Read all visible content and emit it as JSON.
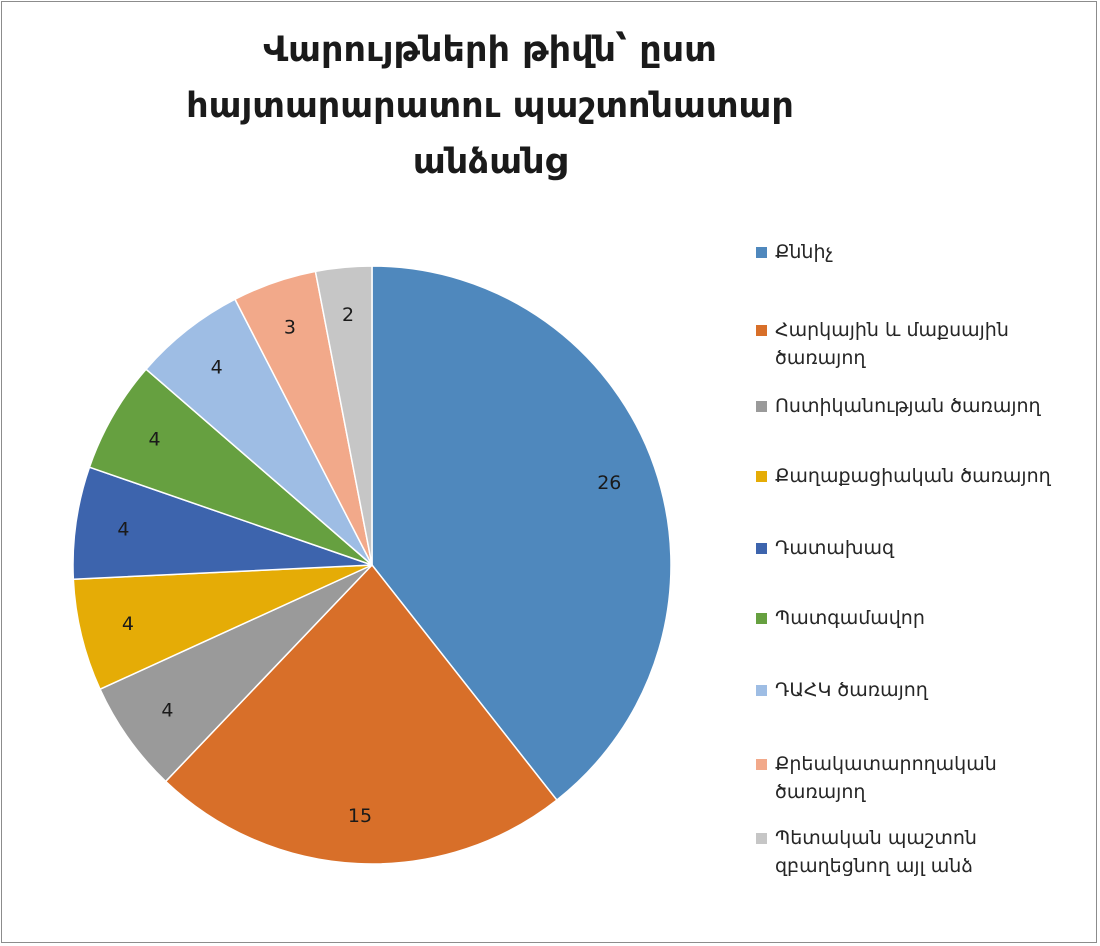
{
  "chart_data": {
    "type": "pie",
    "title": "Վարույթների թիվն՝ ըստ հայտարարատու պաշտոնատար անձանց",
    "title_lines": [
      "Վարույթների թիվն՝ ըստ",
      "հայտարարատու պաշտոնատար",
      "անձանց"
    ],
    "legend_position": "right",
    "slices": [
      {
        "label": "Քննիչ",
        "value": 26,
        "color": "#4f88bd"
      },
      {
        "label": "Հարկային և մաքսային ծառայող",
        "value": 15,
        "color": "#d86f29"
      },
      {
        "label": "Ոստիկանության ծառայող",
        "value": 4,
        "color": "#9a9a9a"
      },
      {
        "label": "Քաղաքացիական ծառայող",
        "value": 4,
        "color": "#e5ac06"
      },
      {
        "label": "Դատախազ",
        "value": 4,
        "color": "#3d64ad"
      },
      {
        "label": "Պատգամավոր",
        "value": 4,
        "color": "#66a040"
      },
      {
        "label": "ԴԱՀԿ ծառայող",
        "value": 4,
        "color": "#9ebde4"
      },
      {
        "label": "Քրեակատարողական ծառայող",
        "value": 3,
        "color": "#f2a98a"
      },
      {
        "label": "Պետական պաշտոն զբաղեցնող այլ անձ",
        "value": 2,
        "color": "#c6c6c6"
      }
    ]
  }
}
